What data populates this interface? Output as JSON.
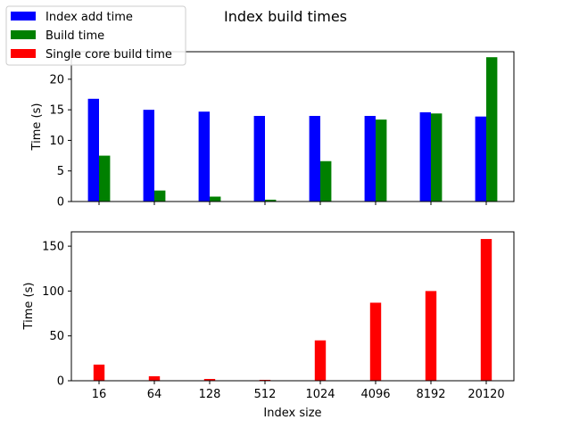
{
  "figure": {
    "title": "Index build times"
  },
  "legend": {
    "entries": [
      {
        "label": "Index add time",
        "color": "#0000ff"
      },
      {
        "label": "Build time",
        "color": "#008000"
      },
      {
        "label": "Single core build time",
        "color": "#ff0000"
      }
    ]
  },
  "chart_data": [
    {
      "type": "bar",
      "title": "Index build times",
      "xlabel": "",
      "ylabel": "Time (s)",
      "categories": [
        "16",
        "64",
        "128",
        "512",
        "1024",
        "4096",
        "8192",
        "20120"
      ],
      "ylim": [
        0,
        24.5
      ],
      "yticks": [
        0,
        5,
        10,
        15,
        20
      ],
      "show_x_tick_labels": false,
      "grid": false,
      "series": [
        {
          "name": "Index add time",
          "color": "#0000ff",
          "values": [
            16.8,
            15.0,
            14.7,
            14.0,
            14.0,
            14.0,
            14.6,
            13.9
          ]
        },
        {
          "name": "Build time",
          "color": "#008000",
          "values": [
            7.5,
            1.8,
            0.8,
            0.3,
            6.6,
            13.4,
            14.4,
            23.6
          ]
        }
      ]
    },
    {
      "type": "bar",
      "title": "",
      "xlabel": "Index size",
      "ylabel": "Time (s)",
      "categories": [
        "16",
        "64",
        "128",
        "512",
        "1024",
        "4096",
        "8192",
        "20120"
      ],
      "ylim": [
        0,
        166
      ],
      "yticks": [
        0,
        50,
        100,
        150
      ],
      "show_x_tick_labels": true,
      "grid": false,
      "series": [
        {
          "name": "Single core build time",
          "color": "#ff0000",
          "values": [
            18,
            5,
            2,
            1,
            45,
            87,
            100,
            158
          ]
        }
      ]
    }
  ]
}
